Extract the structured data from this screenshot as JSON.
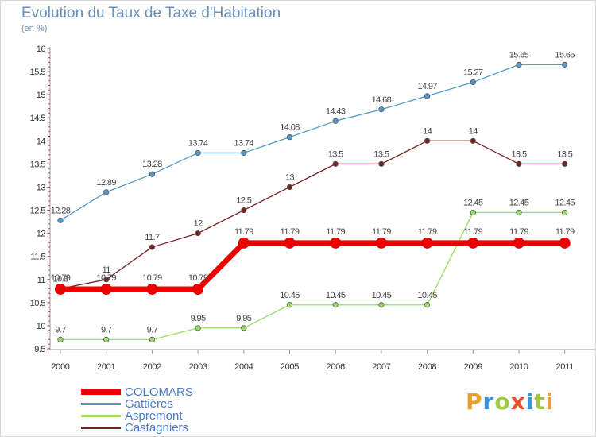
{
  "page": {
    "title": "Evolution du Taux de Taxe d'Habitation",
    "unit": "(en %)",
    "brand": "Proxiti",
    "brand_colors": [
      "#e8a030",
      "#3a8fd8",
      "#a0c840",
      "#e85030",
      "#3a8fd8",
      "#a0c840",
      "#e8a030"
    ]
  },
  "chart_data": {
    "type": "line",
    "title": "Evolution du Taux de Taxe d'Habitation",
    "ylabel": "(en %)",
    "ylim": [
      9.5,
      16
    ],
    "yticks": [
      "9.5",
      "10",
      "10.5",
      "11",
      "11.5",
      "12",
      "12.5",
      "13",
      "13.5",
      "14",
      "14.5",
      "15",
      "15.5",
      "16"
    ],
    "x": [
      "2000",
      "2001",
      "2002",
      "2003",
      "2004",
      "2005",
      "2006",
      "2007",
      "2008",
      "2009",
      "2010",
      "2011"
    ],
    "grid": false,
    "legend_position": "bottom-left",
    "series": [
      {
        "name": "COLOMARS",
        "color": "#ee0000",
        "values": [
          10.79,
          10.79,
          10.79,
          10.79,
          11.79,
          11.79,
          11.79,
          11.79,
          11.79,
          11.79,
          11.79,
          11.79
        ],
        "labels": [
          "10.79",
          "10.79",
          "10.79",
          "10.79",
          "11.79",
          "11.79",
          "11.79",
          "11.79",
          "11.79",
          "11.79",
          "11.79",
          "11.79"
        ]
      },
      {
        "name": "Gattières",
        "color": "#5599cc",
        "values": [
          12.28,
          12.89,
          13.28,
          13.74,
          13.74,
          14.08,
          14.43,
          14.68,
          14.97,
          15.27,
          15.65,
          15.65
        ],
        "labels": [
          "12.28",
          "12.89",
          "13.28",
          "13.74",
          "13.74",
          "14.08",
          "14.43",
          "14.68",
          "14.97",
          "15.27",
          "15.65",
          "15.65"
        ]
      },
      {
        "name": "Aspremont",
        "color": "#99dd66",
        "values": [
          9.7,
          9.7,
          9.7,
          9.95,
          9.95,
          10.45,
          10.45,
          10.45,
          10.45,
          12.45,
          12.45,
          12.45
        ],
        "labels": [
          "9.7",
          "9.7",
          "9.7",
          "9.95",
          "9.95",
          "10.45",
          "10.45",
          "10.45",
          "10.45",
          "12.45",
          "12.45",
          "12.45"
        ]
      },
      {
        "name": "Castagniers",
        "color": "#772222",
        "values": [
          10.8,
          11,
          11.7,
          12,
          12.5,
          13,
          13.5,
          13.5,
          14,
          14,
          13.5,
          13.5
        ],
        "labels": [
          "10.8",
          "11",
          "11.7",
          "12",
          "12.5",
          "13",
          "13.5",
          "13.5",
          "14",
          "14",
          "13.5",
          "13.5"
        ]
      }
    ]
  }
}
